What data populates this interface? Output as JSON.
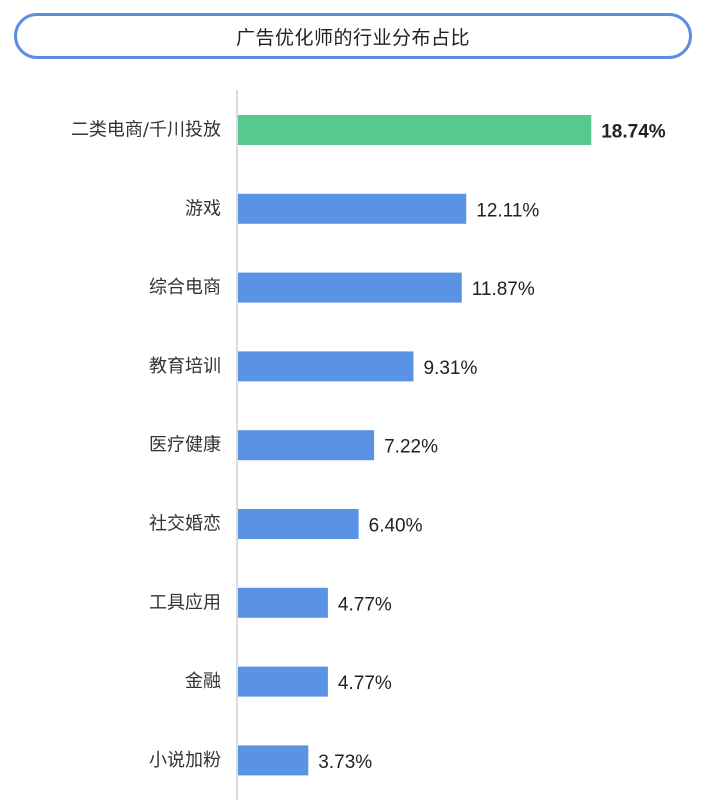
{
  "title": "广告优化师的行业分布占比",
  "colors": {
    "bar": "#5b93e4",
    "highlight": "#57c98f",
    "axis": "#d0d0d0",
    "title_border": "#5b8ee0"
  },
  "chart_data": {
    "type": "bar",
    "orientation": "horizontal",
    "title": "广告优化师的行业分布占比",
    "xlabel": "",
    "ylabel": "",
    "grid": false,
    "legend": "none",
    "xlim": [
      0,
      20
    ],
    "unit": "%",
    "categories": [
      "二类电商/千川投放",
      "游戏",
      "综合电商",
      "教育培训",
      "医疗健康",
      "社交婚恋",
      "工具应用",
      "金融",
      "小说加粉"
    ],
    "values": [
      18.74,
      12.11,
      11.87,
      9.31,
      7.22,
      6.4,
      4.77,
      4.77,
      3.73
    ],
    "value_labels": [
      "18.74%",
      "12.11%",
      "11.87%",
      "9.31%",
      "7.22%",
      "6.40%",
      "4.77%",
      "4.77%",
      "3.73%"
    ],
    "highlight_index": 0
  }
}
